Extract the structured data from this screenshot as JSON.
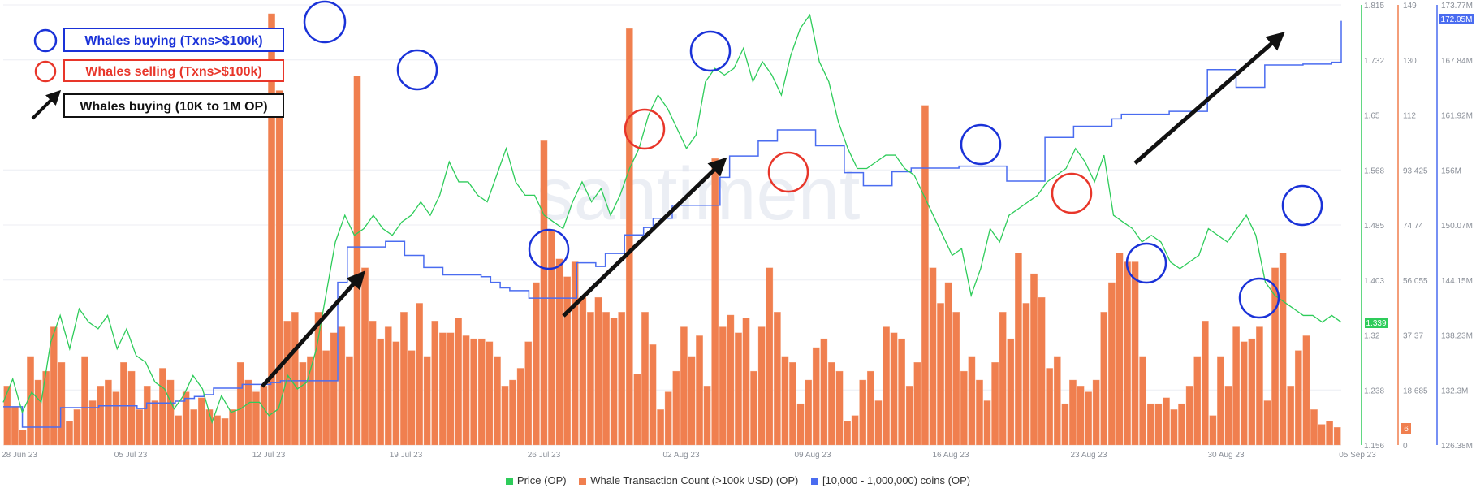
{
  "legend_annotations": {
    "whales_buying": "Whales buying (Txns>$100k)",
    "whales_selling": "Whales selling (Txns>$100k)",
    "whales_buying_range": "Whales buying (10K to 1M OP)"
  },
  "watermark": "santiment",
  "bottom_legend": {
    "price": "Price (OP)",
    "whale_tx": "Whale Transaction Count (>100k USD) (OP)",
    "coins": "[10,000 - 1,000,000) coins (OP)"
  },
  "colors": {
    "price": "#2ecc5a",
    "whale_tx": "#f07f4f",
    "coins": "#4a6cf0",
    "circle_buy": "#1a32d8",
    "circle_sell": "#e8362a"
  },
  "badges": {
    "price_last": "1.339",
    "tx_last": "6",
    "coins_last": "172.05M"
  },
  "chart_data": {
    "type": "bar",
    "x_labels": [
      "28 Jun 23",
      "05 Jul 23",
      "12 Jul 23",
      "19 Jul 23",
      "26 Jul 23",
      "02 Aug 23",
      "09 Aug 23",
      "16 Aug 23",
      "23 Aug 23",
      "30 Aug 23",
      "05 Sep 23"
    ],
    "axes": {
      "price": {
        "ticks": [
          "1.815",
          "1.732",
          "1.65",
          "1.568",
          "1.485",
          "1.403",
          "1.32",
          "1.238",
          "1.156"
        ],
        "range": [
          1.156,
          1.815
        ]
      },
      "whale_tx": {
        "ticks": [
          "149",
          "130",
          "112",
          "93.425",
          "74.74",
          "56.055",
          "37.37",
          "18.685",
          "0"
        ],
        "range": [
          0,
          149
        ]
      },
      "coins": {
        "ticks": [
          "173.77M",
          "167.84M",
          "161.92M",
          "156M",
          "150.07M",
          "144.15M",
          "138.23M",
          "132.3M",
          "126.38M"
        ],
        "range": [
          126.38,
          173.77
        ]
      }
    },
    "series": [
      {
        "name": "Whale Transaction Count (>100k USD) (OP)",
        "axis": "whale_tx",
        "daily_values": [
          20,
          13,
          5,
          30,
          22,
          25,
          40,
          28,
          8,
          12,
          30,
          15,
          20,
          22,
          18,
          28,
          25,
          12,
          20,
          15,
          26,
          22,
          10,
          18,
          12,
          16,
          12,
          10,
          9,
          12,
          28,
          22,
          18,
          20,
          146,
          120,
          42,
          45,
          28,
          30,
          45,
          32,
          38,
          40,
          30,
          125,
          60,
          42,
          36,
          40,
          35,
          45,
          32,
          48,
          30,
          42,
          38,
          38,
          43,
          37,
          36,
          36,
          35,
          30,
          20,
          22,
          26,
          35,
          55,
          103,
          73,
          63,
          57,
          62,
          50,
          45,
          50,
          45,
          43,
          45,
          141,
          24,
          45,
          34,
          12,
          18,
          25,
          40,
          30,
          37,
          20,
          97,
          40,
          44,
          38,
          43,
          25,
          40,
          60,
          45,
          30,
          28,
          14,
          22,
          33,
          36,
          28,
          25,
          8,
          10,
          22,
          25,
          15,
          40,
          38,
          36,
          20,
          28,
          115,
          60,
          48,
          55,
          45,
          25,
          30,
          22,
          15,
          28,
          45,
          36,
          65,
          48,
          58,
          50,
          26,
          30,
          14,
          22,
          20,
          18,
          22,
          45,
          55,
          65,
          62,
          62,
          30,
          14,
          14,
          16,
          12,
          14,
          20,
          30,
          42,
          10,
          30,
          20,
          40,
          35,
          36,
          40,
          15,
          60,
          65,
          20,
          32,
          37,
          12,
          7,
          8,
          6
        ],
        "labels_note": "daily bars 28 Jun 23 - 05 Sep 23 (values in transactions)"
      },
      {
        "name": "Price (OP)",
        "axis": "price",
        "daily_values": [
          1.22,
          1.255,
          1.205,
          1.235,
          1.22,
          1.31,
          1.35,
          1.3,
          1.36,
          1.34,
          1.33,
          1.35,
          1.3,
          1.33,
          1.29,
          1.28,
          1.25,
          1.24,
          1.21,
          1.23,
          1.26,
          1.24,
          1.19,
          1.23,
          1.205,
          1.21,
          1.22,
          1.22,
          1.2,
          1.21,
          1.26,
          1.24,
          1.25,
          1.3,
          1.38,
          1.46,
          1.5,
          1.47,
          1.48,
          1.5,
          1.48,
          1.47,
          1.49,
          1.5,
          1.52,
          1.5,
          1.53,
          1.58,
          1.55,
          1.55,
          1.53,
          1.52,
          1.56,
          1.6,
          1.55,
          1.53,
          1.53,
          1.5,
          1.49,
          1.48,
          1.52,
          1.55,
          1.52,
          1.54,
          1.5,
          1.53,
          1.57,
          1.6,
          1.65,
          1.68,
          1.66,
          1.63,
          1.6,
          1.62,
          1.7,
          1.72,
          1.71,
          1.72,
          1.75,
          1.7,
          1.73,
          1.71,
          1.68,
          1.74,
          1.78,
          1.8,
          1.73,
          1.7,
          1.64,
          1.6,
          1.57,
          1.57,
          1.58,
          1.59,
          1.59,
          1.57,
          1.56,
          1.53,
          1.5,
          1.47,
          1.44,
          1.45,
          1.38,
          1.42,
          1.48,
          1.46,
          1.5,
          1.51,
          1.52,
          1.53,
          1.55,
          1.56,
          1.57,
          1.6,
          1.58,
          1.55,
          1.59,
          1.5,
          1.49,
          1.48,
          1.46,
          1.47,
          1.46,
          1.43,
          1.42,
          1.43,
          1.44,
          1.48,
          1.47,
          1.46,
          1.48,
          1.5,
          1.47,
          1.4,
          1.38,
          1.37,
          1.36,
          1.35,
          1.35,
          1.34,
          1.35,
          1.34
        ],
        "labels_note": "daily price values 28 Jun 23 - 05 Sep 23 (OP)"
      },
      {
        "name": "[10,000 - 1,000,000) coins (OP)",
        "axis": "coins",
        "daily_values": [
          130.5,
          130.5,
          128.3,
          128.3,
          128.3,
          128.3,
          130.4,
          130.4,
          130.4,
          130.4,
          130.6,
          130.6,
          130.6,
          130.6,
          130.3,
          130.9,
          130.9,
          130.9,
          131.1,
          131.4,
          131.6,
          131.8,
          132.5,
          132.5,
          132.5,
          132.9,
          132.9,
          132.9,
          133.1,
          133.3,
          133.3,
          133.3,
          133.3,
          133.3,
          133.3,
          143.9,
          147.7,
          147.7,
          147.7,
          147.7,
          148.3,
          148.3,
          146.8,
          146.8,
          145.5,
          145.5,
          144.7,
          144.7,
          144.7,
          144.7,
          144.5,
          143.9,
          143.3,
          143.0,
          143.0,
          142.2,
          142.2,
          142.2,
          142.2,
          142.2,
          146.0,
          146.0,
          145.6,
          147.0,
          147.0,
          149.0,
          149.0,
          149.8,
          150.8,
          150.8,
          152.2,
          152.2,
          152.2,
          152.2,
          152.2,
          155.2,
          157.5,
          157.5,
          157.5,
          159.1,
          159.1,
          160.3,
          160.3,
          160.3,
          160.3,
          158.6,
          158.6,
          158.6,
          155.7,
          155.7,
          154.3,
          154.3,
          154.3,
          155.8,
          155.8,
          156.2,
          156.2,
          156.2,
          156.2,
          156.2,
          156.4,
          156.4,
          156.4,
          156.4,
          156.4,
          154.8,
          154.8,
          154.8,
          154.8,
          159.5,
          159.5,
          159.5,
          160.7,
          160.7,
          160.7,
          160.7,
          161.5,
          162.0,
          162.0,
          162.0,
          162.0,
          162.0,
          162.3,
          162.3,
          162.3,
          162.3,
          166.8,
          166.8,
          166.8,
          164.9,
          164.9,
          164.9,
          167.3,
          167.3,
          167.3,
          167.3,
          167.4,
          167.4,
          167.4,
          167.6,
          172.05
        ],
        "labels_note": "daily values 28 Jun 23 - 05 Sep 23 (millions OP)"
      }
    ],
    "xlabel": "",
    "ylabel": "",
    "grid": true,
    "legend_position": "bottom-center"
  }
}
